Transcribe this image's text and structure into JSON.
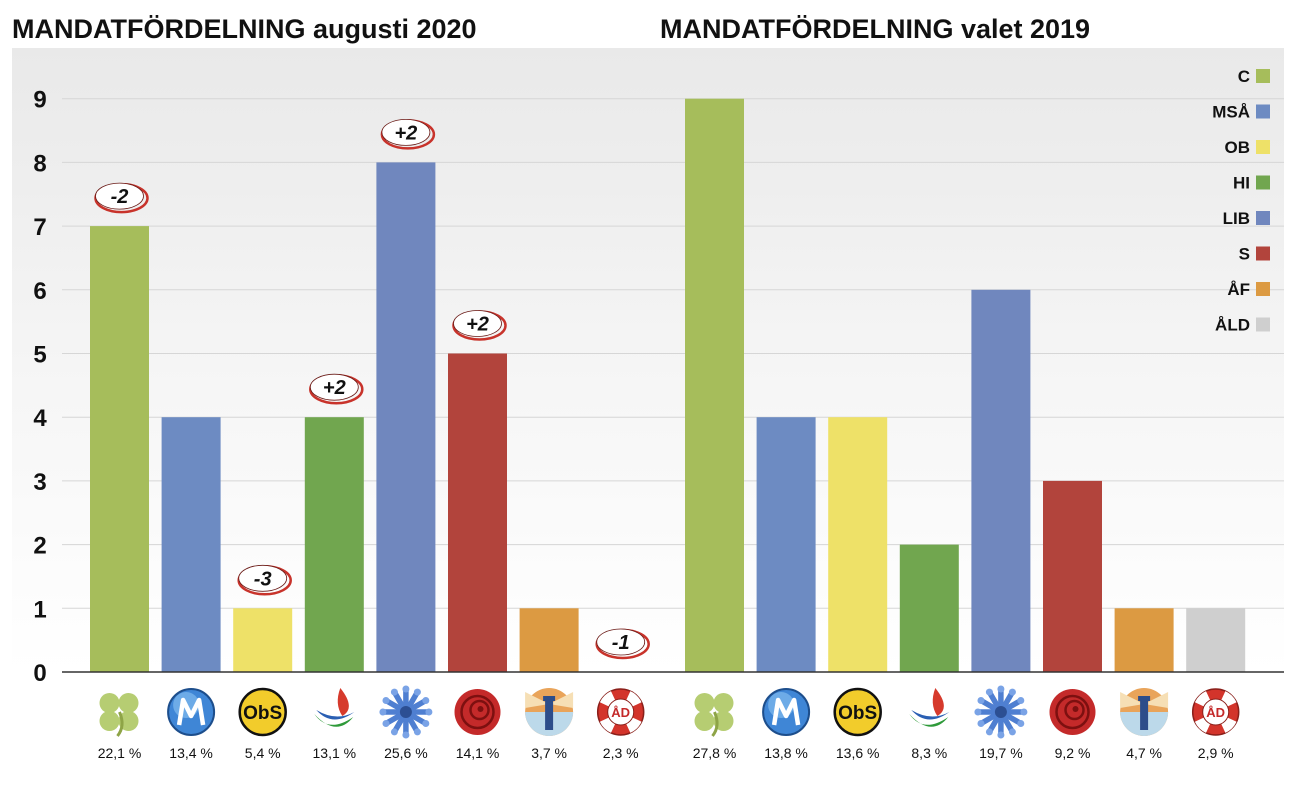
{
  "colors": {
    "C": "#a6bd5b",
    "MSA": "#6d8bc2",
    "OB": "#eee168",
    "HI": "#71a64f",
    "LIB": "#7087be",
    "S": "#b2443c",
    "AF": "#dc9a42",
    "ALD": "#cfcfcf",
    "grid": "#d6d6d6",
    "change_ring": "#c8332b"
  },
  "legend": {
    "items": [
      {
        "label": "C",
        "color": "#a6bd5b"
      },
      {
        "label": "MSÅ",
        "color": "#6d8bc2"
      },
      {
        "label": "OB",
        "color": "#eee168"
      },
      {
        "label": "HI",
        "color": "#71a64f"
      },
      {
        "label": "LIB",
        "color": "#7087be"
      },
      {
        "label": "S",
        "color": "#b2443c"
      },
      {
        "label": "ÅF",
        "color": "#dc9a42"
      },
      {
        "label": "ÅLD",
        "color": "#cfcfcf"
      }
    ]
  },
  "chart_data": [
    {
      "type": "bar",
      "title": "MANDATFÖRDELNING augusti 2020",
      "categories": [
        "C",
        "MSÅ",
        "OB",
        "HI",
        "LIB",
        "S",
        "ÅF",
        "ÅLD"
      ],
      "values": [
        7,
        4,
        1,
        4,
        8,
        5,
        1,
        0
      ],
      "changes": [
        "-2",
        "",
        "-3",
        "+2",
        "+2",
        "+2",
        "",
        "-1"
      ],
      "percentages": [
        "22,1 %",
        "13,4 %",
        "5,4 %",
        "13,1 %",
        "25,6 %",
        "14,1 %",
        "3,7 %",
        "2,3 %"
      ],
      "ylim": [
        0,
        9
      ],
      "yticks": [
        0,
        1,
        2,
        3,
        4,
        5,
        6,
        7,
        8,
        9
      ],
      "grid": true,
      "logos": [
        "clover-icon",
        "msa-logo-icon",
        "obs-logo-icon",
        "hi-logo-icon",
        "cornflower-icon",
        "rose-icon",
        "lighthouse-icon",
        "lifebuoy-icon"
      ],
      "logo_texts": [
        "",
        "",
        "ObS",
        "",
        "",
        "",
        "",
        "ÅD"
      ]
    },
    {
      "type": "bar",
      "title": "MANDATFÖRDELNING valet 2019",
      "categories": [
        "C",
        "MSÅ",
        "OB",
        "HI",
        "LIB",
        "S",
        "ÅF",
        "ÅLD"
      ],
      "values": [
        9,
        4,
        4,
        2,
        6,
        3,
        1,
        1
      ],
      "percentages": [
        "27,8 %",
        "13,8 %",
        "13,6 %",
        "8,3 %",
        "19,7 %",
        "9,2 %",
        "4,7 %",
        "2,9 %"
      ],
      "ylim": [
        0,
        9
      ],
      "grid": true,
      "legend": "top-right",
      "logos": [
        "clover-icon",
        "msa-logo-icon",
        "obs-logo-icon",
        "hi-logo-icon",
        "cornflower-icon",
        "rose-icon",
        "lighthouse-icon",
        "lifebuoy-icon"
      ],
      "logo_texts": [
        "",
        "",
        "ObS",
        "",
        "",
        "",
        "",
        "ÅD"
      ]
    }
  ]
}
